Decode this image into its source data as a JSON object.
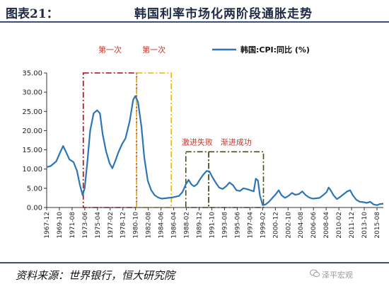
{
  "header": {
    "fig_label": "图表21：",
    "title": "韩国利率市场化两阶段通胀走势"
  },
  "footer": {
    "source": "资料来源：世界银行，恒大研究院",
    "watermark": "泽平宏观"
  },
  "chart_data": {
    "type": "line",
    "title": "",
    "xlabel": "",
    "ylabel": "",
    "ylim": [
      0,
      35
    ],
    "yticks": [
      "0.00",
      "5.00",
      "10.00",
      "15.00",
      "20.00",
      "25.00",
      "30.00",
      "35.00"
    ],
    "xtick_labels": [
      "1967-12",
      "1969-10",
      "1971-08",
      "1973-06",
      "1975-04",
      "1977-02",
      "1978-12",
      "1980-10",
      "1982-08",
      "1984-06",
      "1986-04",
      "1988-02",
      "1989-12",
      "1991-10",
      "1993-08",
      "1995-06",
      "1997-04",
      "1999-02",
      "2000-12",
      "2002-10",
      "2004-08",
      "2006-06",
      "2008-04",
      "2010-02",
      "2011-12",
      "2013-10",
      "2015-08"
    ],
    "xrange": [
      1967.92,
      2016.5
    ],
    "legend": {
      "position": "top-right",
      "label": "韩国:CPI:同比 (%)"
    },
    "grid": false,
    "series": [
      {
        "name": "韩国:CPI:同比 (%)",
        "color": "#2e75b6",
        "points": [
          [
            1967.9,
            10.5
          ],
          [
            1968.5,
            10.8
          ],
          [
            1969.3,
            12.0
          ],
          [
            1969.9,
            14.5
          ],
          [
            1970.3,
            16.0
          ],
          [
            1970.7,
            14.5
          ],
          [
            1971.2,
            12.5
          ],
          [
            1971.8,
            11.8
          ],
          [
            1972.3,
            9.5
          ],
          [
            1972.7,
            6.0
          ],
          [
            1973.1,
            3.2
          ],
          [
            1973.4,
            5.0
          ],
          [
            1973.8,
            12.0
          ],
          [
            1974.2,
            20.0
          ],
          [
            1974.7,
            24.5
          ],
          [
            1975.2,
            25.3
          ],
          [
            1975.6,
            24.5
          ],
          [
            1976.0,
            19.0
          ],
          [
            1976.5,
            14.5
          ],
          [
            1977.0,
            11.5
          ],
          [
            1977.4,
            10.2
          ],
          [
            1977.8,
            12.0
          ],
          [
            1978.3,
            14.5
          ],
          [
            1978.8,
            16.5
          ],
          [
            1979.3,
            18.0
          ],
          [
            1979.9,
            22.5
          ],
          [
            1980.4,
            28.0
          ],
          [
            1980.7,
            29.0
          ],
          [
            1981.1,
            27.5
          ],
          [
            1981.6,
            21.0
          ],
          [
            1982.0,
            13.0
          ],
          [
            1982.5,
            7.0
          ],
          [
            1983.0,
            4.5
          ],
          [
            1983.5,
            3.2
          ],
          [
            1984.0,
            2.6
          ],
          [
            1984.5,
            2.3
          ],
          [
            1985.0,
            2.4
          ],
          [
            1985.5,
            2.5
          ],
          [
            1986.0,
            2.6
          ],
          [
            1986.5,
            2.8
          ],
          [
            1987.0,
            3.0
          ],
          [
            1987.5,
            4.0
          ],
          [
            1988.0,
            6.0
          ],
          [
            1988.4,
            7.2
          ],
          [
            1988.8,
            6.0
          ],
          [
            1989.2,
            5.5
          ],
          [
            1989.6,
            6.0
          ],
          [
            1990.0,
            7.2
          ],
          [
            1990.5,
            8.5
          ],
          [
            1991.0,
            9.5
          ],
          [
            1991.4,
            9.4
          ],
          [
            1991.8,
            8.0
          ],
          [
            1992.3,
            6.5
          ],
          [
            1992.8,
            5.2
          ],
          [
            1993.3,
            4.8
          ],
          [
            1993.8,
            5.5
          ],
          [
            1994.3,
            6.5
          ],
          [
            1994.8,
            5.8
          ],
          [
            1995.3,
            4.5
          ],
          [
            1995.8,
            4.3
          ],
          [
            1996.3,
            5.0
          ],
          [
            1996.8,
            4.8
          ],
          [
            1997.3,
            4.5
          ],
          [
            1997.8,
            4.2
          ],
          [
            1998.1,
            7.5
          ],
          [
            1998.4,
            7.0
          ],
          [
            1998.7,
            3.0
          ],
          [
            1999.1,
            0.6
          ],
          [
            1999.5,
            0.8
          ],
          [
            2000.0,
            1.5
          ],
          [
            2000.5,
            2.5
          ],
          [
            2001.0,
            3.5
          ],
          [
            2001.4,
            4.5
          ],
          [
            2001.8,
            3.2
          ],
          [
            2002.3,
            2.5
          ],
          [
            2002.8,
            3.0
          ],
          [
            2003.3,
            3.8
          ],
          [
            2003.8,
            3.3
          ],
          [
            2004.3,
            3.5
          ],
          [
            2004.8,
            4.2
          ],
          [
            2005.3,
            3.2
          ],
          [
            2005.8,
            2.6
          ],
          [
            2006.3,
            2.3
          ],
          [
            2006.8,
            2.4
          ],
          [
            2007.3,
            2.5
          ],
          [
            2007.8,
            3.2
          ],
          [
            2008.3,
            4.0
          ],
          [
            2008.6,
            5.2
          ],
          [
            2008.9,
            4.5
          ],
          [
            2009.3,
            3.2
          ],
          [
            2009.8,
            2.2
          ],
          [
            2010.3,
            2.8
          ],
          [
            2010.8,
            3.5
          ],
          [
            2011.3,
            4.2
          ],
          [
            2011.7,
            4.5
          ],
          [
            2012.1,
            3.2
          ],
          [
            2012.6,
            2.0
          ],
          [
            2013.1,
            1.5
          ],
          [
            2013.6,
            1.4
          ],
          [
            2014.1,
            1.2
          ],
          [
            2014.6,
            1.5
          ],
          [
            2015.1,
            0.8
          ],
          [
            2015.6,
            0.6
          ],
          [
            2016.0,
            0.9
          ],
          [
            2016.5,
            1.0
          ]
        ]
      }
    ],
    "annotations": [
      {
        "label": "第一次",
        "style": "dashdot",
        "color": "#c00000",
        "x0": 1973.2,
        "x1": 1980.9,
        "y0": 0,
        "y1": 35
      },
      {
        "label": "第一次",
        "style": "dashdot",
        "color": "#f0b400",
        "x0": 1980.9,
        "x1": 1985.9,
        "y0": 0,
        "y1": 35
      },
      {
        "label": "激进失败",
        "style": "dashdot",
        "color": "#4a4a1f",
        "x0": 1988.0,
        "x1": 1991.3,
        "y0": 0,
        "y1": 14.5
      },
      {
        "label": "渐进成功",
        "style": "dashdot",
        "color": "#4a4a1f",
        "x0": 1991.3,
        "x1": 1999.2,
        "y0": 0,
        "y1": 14.5
      }
    ]
  }
}
